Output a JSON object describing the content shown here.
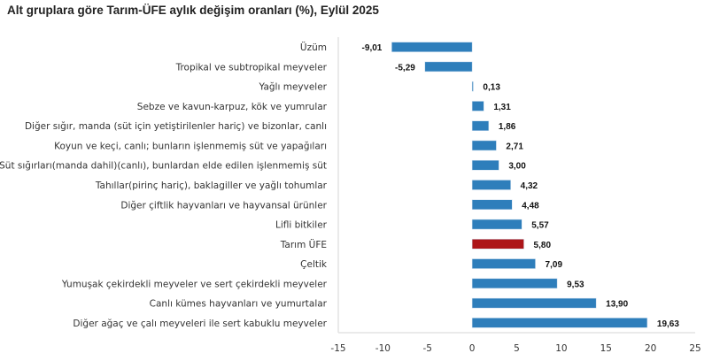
{
  "chart_data": {
    "type": "bar",
    "orientation": "horizontal",
    "title": "Alt gruplara göre Tarım-ÜFE aylık değişim oranları (%), Eylül 2025",
    "categories": [
      "Üzüm",
      "Tropikal ve subtropikal meyveler",
      "Yağlı meyveler",
      "Sebze ve kavun-karpuz, kök ve yumrular",
      "Diğer sığır, manda (süt için yetiştirilenler hariç) ve bizonlar, canlı",
      "Koyun ve keçi, canlı; bunların işlenmemiş süt ve yapağıları",
      "Süt sığırları(manda dahil)(canlı), bunlardan elde edilen işlenmemiş süt",
      "Tahıllar(pirinç hariç), baklagiller ve yağlı tohumlar",
      "Diğer çiftlik hayvanları ve hayvansal ürünler",
      "Lifli bitkiler",
      "Tarım ÜFE",
      "Çeltik",
      "Yumuşak çekirdekli meyveler ve sert çekirdekli meyveler",
      "Canlı kümes hayvanları ve yumurtalar",
      "Diğer ağaç ve çalı meyveleri ile sert kabuklu meyveler"
    ],
    "values": [
      -9.01,
      -5.29,
      0.13,
      1.31,
      1.86,
      2.71,
      3.0,
      4.32,
      4.48,
      5.57,
      5.8,
      7.09,
      9.53,
      13.9,
      19.63
    ],
    "value_labels": [
      "-9,01",
      "-5,29",
      "0,13",
      "1,31",
      "1,86",
      "2,71",
      "3,00",
      "4,32",
      "4,48",
      "5,57",
      "5,80",
      "7,09",
      "9,53",
      "13,90",
      "19,63"
    ],
    "highlight_category": "Tarım ÜFE",
    "xlim": [
      -15,
      25
    ],
    "xticks": [
      "-15",
      "-10",
      "-5",
      "0",
      "5",
      "10",
      "15",
      "20",
      "25"
    ],
    "xtick_values": [
      -15,
      -10,
      -5,
      0,
      5,
      10,
      15,
      20,
      25
    ],
    "grid": false,
    "colors": {
      "bar": "#2e7ebb",
      "highlight": "#ad1519"
    }
  }
}
